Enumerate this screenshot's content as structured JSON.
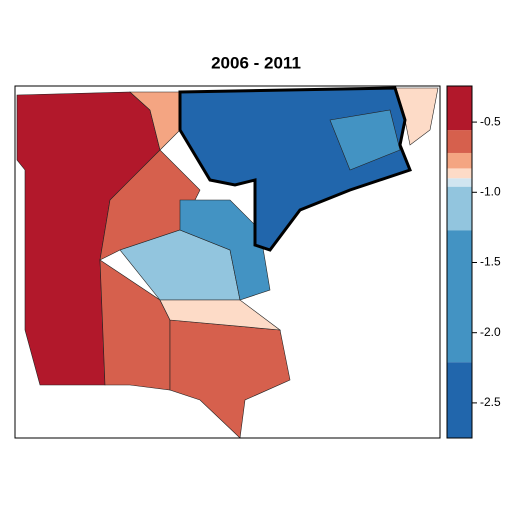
{
  "chart_data": {
    "type": "choropleth",
    "title": "2006 - 2011",
    "values": [
      -0.4,
      -0.65,
      -0.6,
      -0.7,
      -1.2,
      -0.85,
      -1.6,
      -2.5,
      -2.0,
      -0.85,
      -0.75
    ],
    "colorbar": {
      "breaks": [
        -2.75,
        -2.21,
        -1.27,
        -0.96,
        -0.9,
        -0.83,
        -0.72,
        -0.557,
        -0.243
      ],
      "colors": [
        "#2166ac",
        "#4393c3",
        "#92c5de",
        "#d1e5f0",
        "#fddbc7",
        "#f4a582",
        "#d6604d",
        "#b2182b"
      ],
      "ylim": [
        -2.75,
        -0.243
      ],
      "yticks": [
        -0.5,
        {
          "value": -1,
          "label": "-1.0"
        },
        -1.5,
        {
          "value": -2,
          "label": "-2.0"
        },
        -2.5
      ]
    }
  }
}
